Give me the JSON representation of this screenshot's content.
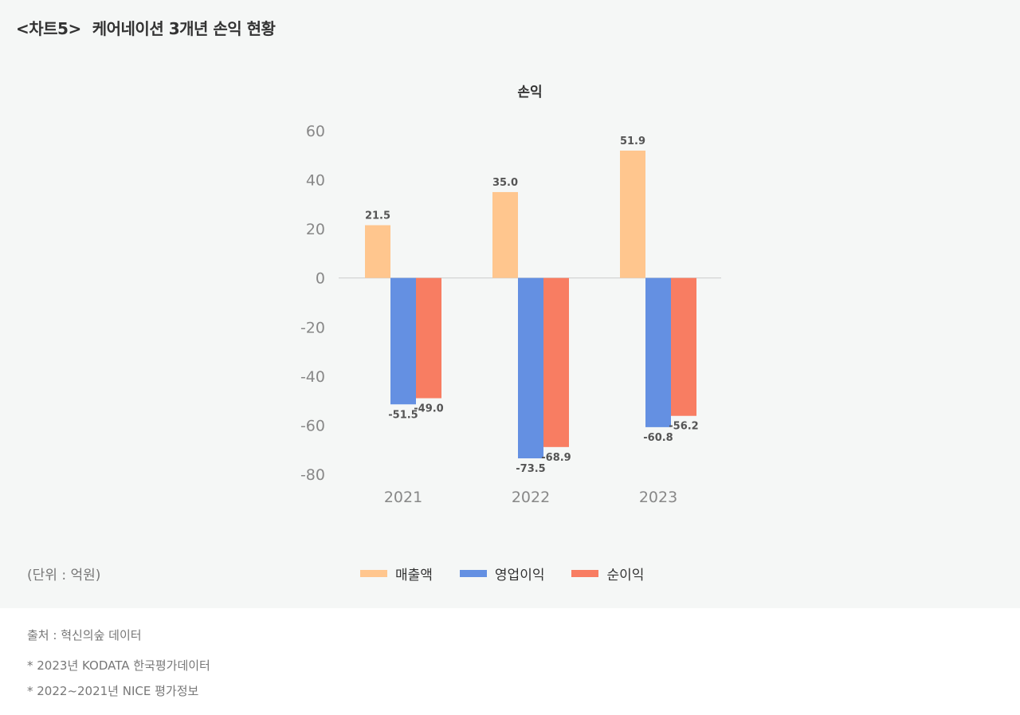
{
  "header": {
    "chart_no": "<차트5>",
    "title": "케어네이션 3개년 손익 현황"
  },
  "unit_note": "(단위 : 억원)",
  "source": {
    "line": "출처 : 혁신의숲 데이터",
    "notes": [
      "*  2023년 KODATA 한국평가데이터",
      "*  2022~2021년 NICE 평가정보"
    ]
  },
  "chart_data": {
    "type": "bar",
    "title": "손익",
    "categories": [
      "2021",
      "2022",
      "2023"
    ],
    "series": [
      {
        "name": "매출액",
        "color": "#FFC68E",
        "values": [
          21.5,
          35.0,
          51.9
        ],
        "labels": [
          "21.5",
          "35.0",
          "51.9"
        ]
      },
      {
        "name": "영업이익",
        "color": "#6490E2",
        "values": [
          -51.5,
          -73.5,
          -60.8
        ],
        "labels": [
          "-51.5",
          "-73.5",
          "-60.8"
        ]
      },
      {
        "name": "순이익",
        "color": "#F87D62",
        "values": [
          -49.0,
          -68.9,
          -56.2
        ],
        "labels": [
          "-49.0",
          "-68.9",
          "-56.2"
        ]
      }
    ],
    "ylim": [
      -80,
      60
    ],
    "yticks": [
      "60",
      "40",
      "20",
      "0",
      "-20",
      "-40",
      "-60",
      "-80"
    ],
    "grid": false,
    "legend": "bottom"
  }
}
